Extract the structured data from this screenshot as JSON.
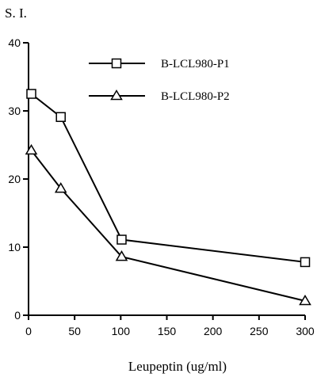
{
  "chart_data": {
    "type": "line",
    "ylabel": "S. I.",
    "xlabel": "Leupeptin (ug/ml)",
    "xlim": [
      0,
      300
    ],
    "ylim": [
      0,
      40
    ],
    "x_ticks": [
      0,
      50,
      100,
      150,
      200,
      250,
      300
    ],
    "x_tick_labels": [
      "0",
      "50",
      "100",
      "150",
      "200",
      "250",
      "300"
    ],
    "y_ticks": [
      0,
      10,
      20,
      30,
      40
    ],
    "y_tick_labels": [
      "0",
      "10",
      "20",
      "30",
      "40"
    ],
    "grid": false,
    "legend_position": "top-right",
    "series": [
      {
        "name": "B-LCL980-P1",
        "marker": "square",
        "x": [
          3,
          35,
          101,
          300
        ],
        "y": [
          32.5,
          29.1,
          11.1,
          7.8
        ]
      },
      {
        "name": "B-LCL980-P2",
        "marker": "triangle",
        "x": [
          3,
          35,
          101,
          300
        ],
        "y": [
          24.2,
          18.6,
          8.6,
          2.1
        ]
      }
    ]
  }
}
